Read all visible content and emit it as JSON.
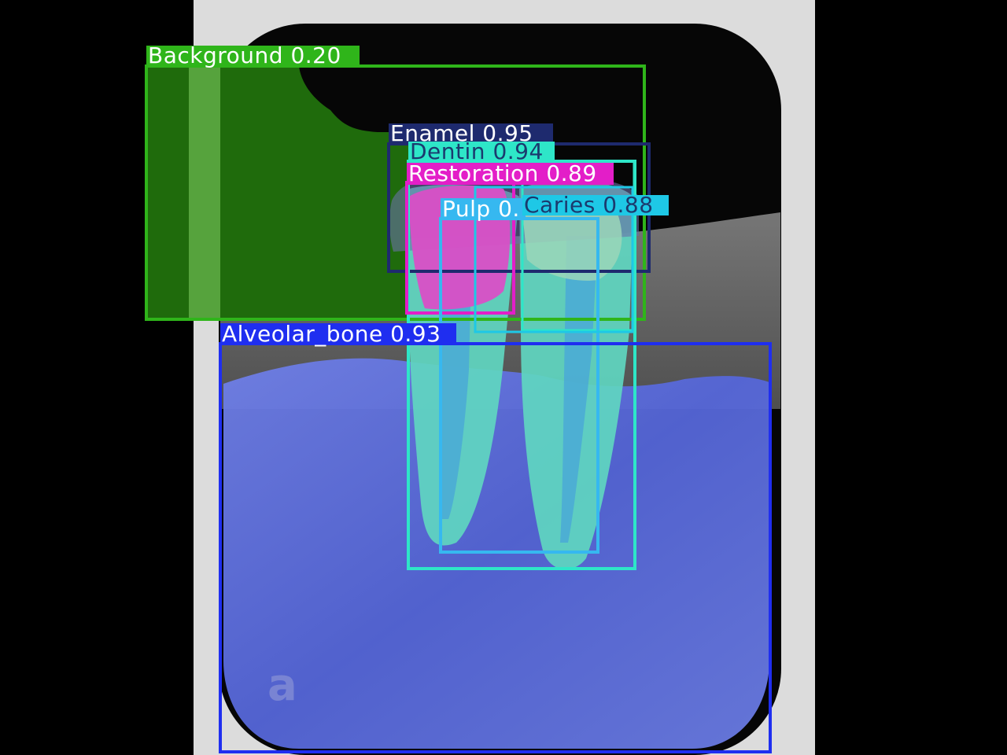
{
  "image": {
    "type": "dental periapical x-ray with segmentation overlay",
    "film_color": "#d9d9d9",
    "backdrop_color": "#000000"
  },
  "detections": [
    {
      "class": "Background",
      "score": "0.20",
      "text": "Background 0.20",
      "color": "#2fb51a"
    },
    {
      "class": "Enamel",
      "score": "0.95",
      "text": "Enamel 0.95",
      "color": "#1e2a6e"
    },
    {
      "class": "Dentin",
      "score": "0.94",
      "text": "Dentin 0.94",
      "color": "#2ee6c8"
    },
    {
      "class": "Restoration",
      "score": "0.89",
      "text": "Restoration 0.89",
      "color": "#e31ec8"
    },
    {
      "class": "Pulp",
      "score": "0.",
      "text": "Pulp 0.",
      "color": "#36b8f0"
    },
    {
      "class": "Caries",
      "score": "0.88",
      "text": "Caries 0.88",
      "color": "#1ec8e6"
    },
    {
      "class": "Alveolar_bone",
      "score": "0.93",
      "text": "Alveolar_bone 0.93",
      "color": "#1f2ef0"
    }
  ]
}
